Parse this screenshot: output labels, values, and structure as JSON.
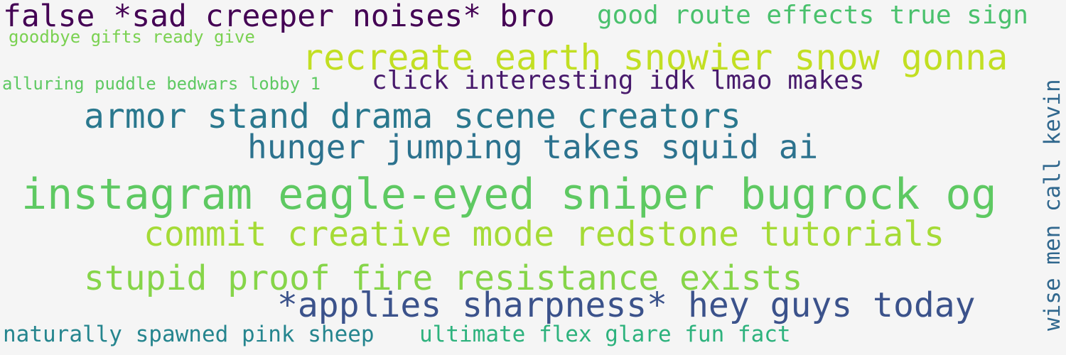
{
  "phrases": [
    {
      "text": "false *sad creeper noises* bro",
      "color": "#440154"
    },
    {
      "text": "good route effects true sign",
      "color": "#4ac16d"
    },
    {
      "text": "goodbye gifts ready give",
      "color": "#7ad151"
    },
    {
      "text": "recreate earth snowier snow gonna",
      "color": "#c2df23"
    },
    {
      "text": "alluring puddle bedwars lobby 1",
      "color": "#5ec962"
    },
    {
      "text": "click interesting idk lmao makes",
      "color": "#481a6c"
    },
    {
      "text": "armor stand drama scene creators",
      "color": "#2a788e"
    },
    {
      "text": "hunger jumping takes squid ai",
      "color": "#2c728e"
    },
    {
      "text": "instagram eagle-eyed sniper bugrock og",
      "color": "#5ec962"
    },
    {
      "text": "commit creative mode redstone tutorials",
      "color": "#a5db36"
    },
    {
      "text": "stupid proof fire resistance exists",
      "color": "#86d549"
    },
    {
      "text": "*applies sharpness* hey guys today",
      "color": "#3b528b"
    },
    {
      "text": "naturally spawned pink sheep",
      "color": "#25858e"
    },
    {
      "text": "ultimate flex glare fun fact",
      "color": "#2db27d"
    },
    {
      "text": "wise men call kevin",
      "color": "#31688e"
    }
  ]
}
